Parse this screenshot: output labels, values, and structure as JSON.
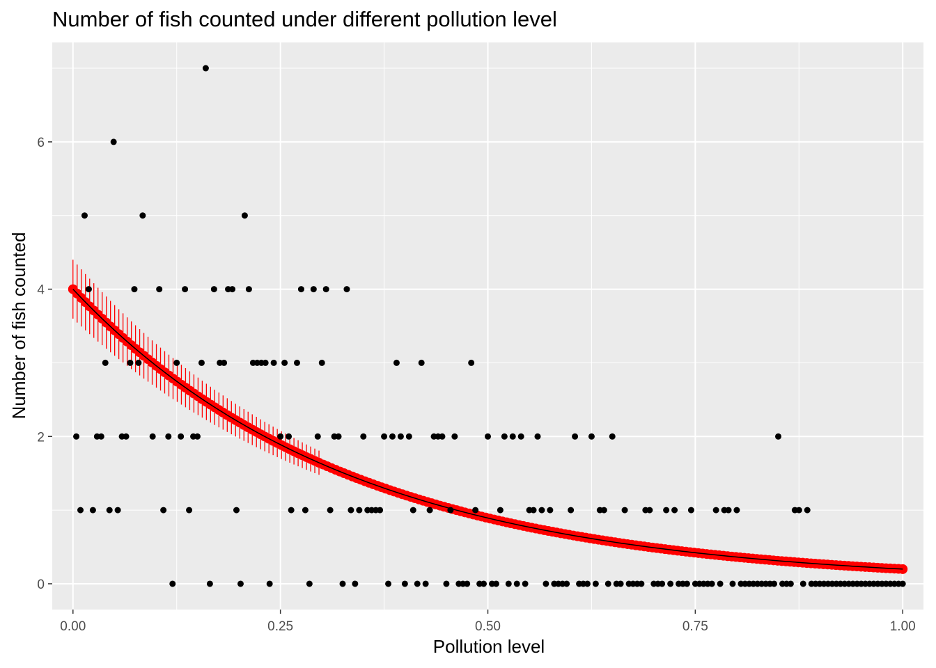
{
  "chart_data": {
    "type": "scatter",
    "title": "Number of fish counted under different pollution level",
    "xlabel": "Pollution level",
    "ylabel": "Number of fish counted",
    "xlim": [
      -0.025,
      1.025
    ],
    "ylim": [
      -0.35,
      7.35
    ],
    "x_ticks": [
      {
        "value": 0.0,
        "label": "0.00"
      },
      {
        "value": 0.25,
        "label": "0.25"
      },
      {
        "value": 0.5,
        "label": "0.50"
      },
      {
        "value": 0.75,
        "label": "0.75"
      },
      {
        "value": 1.0,
        "label": "1.00"
      }
    ],
    "y_ticks": [
      {
        "value": 0,
        "label": "0"
      },
      {
        "value": 2,
        "label": "2"
      },
      {
        "value": 4,
        "label": "4"
      },
      {
        "value": 6,
        "label": "6"
      }
    ],
    "x_minor_breaks": [
      0.125,
      0.375,
      0.625,
      0.875
    ],
    "y_minor_breaks": [
      1,
      3,
      5,
      7
    ],
    "grid": true,
    "panel_background": "#ebebeb",
    "grid_color": "#ffffff",
    "point_color": "#000000",
    "fit_color": "#ff0000",
    "line_color": "#000000",
    "observed_points": [
      [
        0.004,
        2
      ],
      [
        0.009,
        1
      ],
      [
        0.014,
        5
      ],
      [
        0.019,
        4
      ],
      [
        0.024,
        1
      ],
      [
        0.029,
        2
      ],
      [
        0.034,
        2
      ],
      [
        0.039,
        3
      ],
      [
        0.044,
        1
      ],
      [
        0.049,
        6
      ],
      [
        0.054,
        1
      ],
      [
        0.059,
        2
      ],
      [
        0.064,
        2
      ],
      [
        0.069,
        3
      ],
      [
        0.074,
        4
      ],
      [
        0.079,
        3
      ],
      [
        0.084,
        5
      ],
      [
        0.096,
        2
      ],
      [
        0.104,
        4
      ],
      [
        0.109,
        1
      ],
      [
        0.115,
        2
      ],
      [
        0.12,
        0
      ],
      [
        0.125,
        3
      ],
      [
        0.13,
        2
      ],
      [
        0.135,
        4
      ],
      [
        0.14,
        1
      ],
      [
        0.145,
        2
      ],
      [
        0.15,
        2
      ],
      [
        0.155,
        3
      ],
      [
        0.16,
        7
      ],
      [
        0.165,
        0
      ],
      [
        0.17,
        4
      ],
      [
        0.177,
        3
      ],
      [
        0.182,
        3
      ],
      [
        0.187,
        4
      ],
      [
        0.192,
        4
      ],
      [
        0.197,
        1
      ],
      [
        0.202,
        0
      ],
      [
        0.207,
        5
      ],
      [
        0.212,
        4
      ],
      [
        0.217,
        3
      ],
      [
        0.222,
        3
      ],
      [
        0.227,
        3
      ],
      [
        0.232,
        3
      ],
      [
        0.237,
        0
      ],
      [
        0.242,
        3
      ],
      [
        0.25,
        2
      ],
      [
        0.255,
        3
      ],
      [
        0.26,
        2
      ],
      [
        0.263,
        1
      ],
      [
        0.27,
        3
      ],
      [
        0.275,
        4
      ],
      [
        0.28,
        1
      ],
      [
        0.285,
        0
      ],
      [
        0.29,
        4
      ],
      [
        0.295,
        2
      ],
      [
        0.3,
        3
      ],
      [
        0.305,
        4
      ],
      [
        0.31,
        1
      ],
      [
        0.315,
        2
      ],
      [
        0.32,
        2
      ],
      [
        0.325,
        0
      ],
      [
        0.33,
        4
      ],
      [
        0.335,
        1
      ],
      [
        0.34,
        0
      ],
      [
        0.345,
        1
      ],
      [
        0.35,
        2
      ],
      [
        0.355,
        1
      ],
      [
        0.36,
        1
      ],
      [
        0.365,
        1
      ],
      [
        0.37,
        1
      ],
      [
        0.375,
        2
      ],
      [
        0.38,
        0
      ],
      [
        0.385,
        2
      ],
      [
        0.39,
        3
      ],
      [
        0.395,
        2
      ],
      [
        0.4,
        0
      ],
      [
        0.405,
        2
      ],
      [
        0.41,
        1
      ],
      [
        0.415,
        0
      ],
      [
        0.42,
        3
      ],
      [
        0.425,
        0
      ],
      [
        0.43,
        1
      ],
      [
        0.435,
        2
      ],
      [
        0.44,
        2
      ],
      [
        0.445,
        2
      ],
      [
        0.45,
        0
      ],
      [
        0.455,
        1
      ],
      [
        0.46,
        2
      ],
      [
        0.465,
        0
      ],
      [
        0.47,
        0
      ],
      [
        0.475,
        0
      ],
      [
        0.48,
        3
      ],
      [
        0.485,
        1
      ],
      [
        0.49,
        0
      ],
      [
        0.495,
        0
      ],
      [
        0.5,
        2
      ],
      [
        0.505,
        0
      ],
      [
        0.51,
        0
      ],
      [
        0.515,
        1
      ],
      [
        0.52,
        2
      ],
      [
        0.525,
        0
      ],
      [
        0.53,
        2
      ],
      [
        0.535,
        0
      ],
      [
        0.54,
        2
      ],
      [
        0.545,
        0
      ],
      [
        0.55,
        1
      ],
      [
        0.555,
        1
      ],
      [
        0.56,
        2
      ],
      [
        0.565,
        1
      ],
      [
        0.57,
        0
      ],
      [
        0.575,
        1
      ],
      [
        0.58,
        0
      ],
      [
        0.585,
        0
      ],
      [
        0.59,
        0
      ],
      [
        0.595,
        0
      ],
      [
        0.6,
        1
      ],
      [
        0.605,
        2
      ],
      [
        0.61,
        0
      ],
      [
        0.615,
        0
      ],
      [
        0.62,
        0
      ],
      [
        0.625,
        2
      ],
      [
        0.63,
        0
      ],
      [
        0.635,
        1
      ],
      [
        0.64,
        1
      ],
      [
        0.645,
        0
      ],
      [
        0.65,
        2
      ],
      [
        0.655,
        0
      ],
      [
        0.66,
        0
      ],
      [
        0.665,
        1
      ],
      [
        0.67,
        0
      ],
      [
        0.675,
        0
      ],
      [
        0.68,
        0
      ],
      [
        0.685,
        0
      ],
      [
        0.69,
        1
      ],
      [
        0.695,
        1
      ],
      [
        0.7,
        0
      ],
      [
        0.705,
        0
      ],
      [
        0.71,
        0
      ],
      [
        0.715,
        1
      ],
      [
        0.72,
        0
      ],
      [
        0.725,
        1
      ],
      [
        0.73,
        0
      ],
      [
        0.735,
        0
      ],
      [
        0.74,
        0
      ],
      [
        0.745,
        1
      ],
      [
        0.75,
        0
      ],
      [
        0.755,
        0
      ],
      [
        0.76,
        0
      ],
      [
        0.765,
        0
      ],
      [
        0.77,
        0
      ],
      [
        0.775,
        1
      ],
      [
        0.78,
        0
      ],
      [
        0.785,
        1
      ],
      [
        0.79,
        1
      ],
      [
        0.795,
        0
      ],
      [
        0.8,
        1
      ],
      [
        0.805,
        0
      ],
      [
        0.81,
        0
      ],
      [
        0.815,
        0
      ],
      [
        0.82,
        0
      ],
      [
        0.825,
        0
      ],
      [
        0.83,
        0
      ],
      [
        0.835,
        0
      ],
      [
        0.84,
        0
      ],
      [
        0.845,
        0
      ],
      [
        0.85,
        2
      ],
      [
        0.855,
        0
      ],
      [
        0.86,
        0
      ],
      [
        0.865,
        0
      ],
      [
        0.87,
        1
      ],
      [
        0.875,
        1
      ],
      [
        0.88,
        0
      ],
      [
        0.885,
        1
      ],
      [
        0.89,
        0
      ],
      [
        0.895,
        0
      ],
      [
        0.9,
        0
      ],
      [
        0.905,
        0
      ],
      [
        0.91,
        0
      ],
      [
        0.915,
        0
      ],
      [
        0.92,
        0
      ],
      [
        0.925,
        0
      ],
      [
        0.93,
        0
      ],
      [
        0.935,
        0
      ],
      [
        0.94,
        0
      ],
      [
        0.945,
        0
      ],
      [
        0.95,
        0
      ],
      [
        0.955,
        0
      ],
      [
        0.96,
        0
      ],
      [
        0.965,
        0
      ],
      [
        0.97,
        0
      ],
      [
        0.975,
        0
      ],
      [
        0.98,
        0
      ],
      [
        0.985,
        0
      ],
      [
        0.99,
        0
      ],
      [
        0.995,
        0
      ],
      [
        1.0,
        0
      ]
    ],
    "fitted_curve": {
      "formula": "y = 4 * exp(-3 * x)",
      "x_from": 0,
      "x_to": 1,
      "point_count": 200,
      "errorbar_halfwidth_at_0": 0.4,
      "errorbar_visible_until_x": 0.3
    }
  }
}
